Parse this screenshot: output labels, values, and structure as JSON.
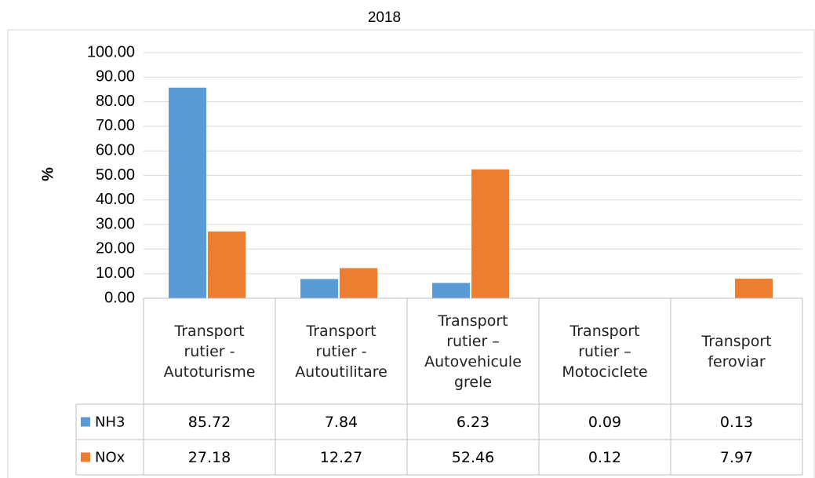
{
  "chart_data": {
    "type": "bar",
    "title": "2018",
    "y_label": "%",
    "categories": [
      "Transport rutier - Autoturisme",
      "Transport rutier - Autoutilitare",
      "Transport rutier – Autovehicule grele",
      "Transport rutier – Motociclete",
      "Transport feroviar"
    ],
    "series": [
      {
        "name": "NH3",
        "color": "#5b9bd5",
        "values": [
          85.72,
          7.84,
          6.23,
          0.09,
          0.13
        ]
      },
      {
        "name": "NOx",
        "color": "#ed7d31",
        "values": [
          27.18,
          12.27,
          52.46,
          0.12,
          7.97
        ]
      }
    ],
    "ylim": [
      0,
      100
    ],
    "yticks": [
      {
        "value": 0,
        "label": "0.00"
      },
      {
        "value": 10,
        "label": "10.00"
      },
      {
        "value": 20,
        "label": "20.00"
      },
      {
        "value": 30,
        "label": "30.00"
      },
      {
        "value": 40,
        "label": "40.00"
      },
      {
        "value": 50,
        "label": "50.00"
      },
      {
        "value": 60,
        "label": "60.00"
      },
      {
        "value": 70,
        "label": "70.00"
      },
      {
        "value": 80,
        "label": "80.00"
      },
      {
        "value": 90,
        "label": "90.00"
      },
      {
        "value": 100,
        "label": "100.00"
      }
    ],
    "grid": true,
    "data_table": true
  }
}
